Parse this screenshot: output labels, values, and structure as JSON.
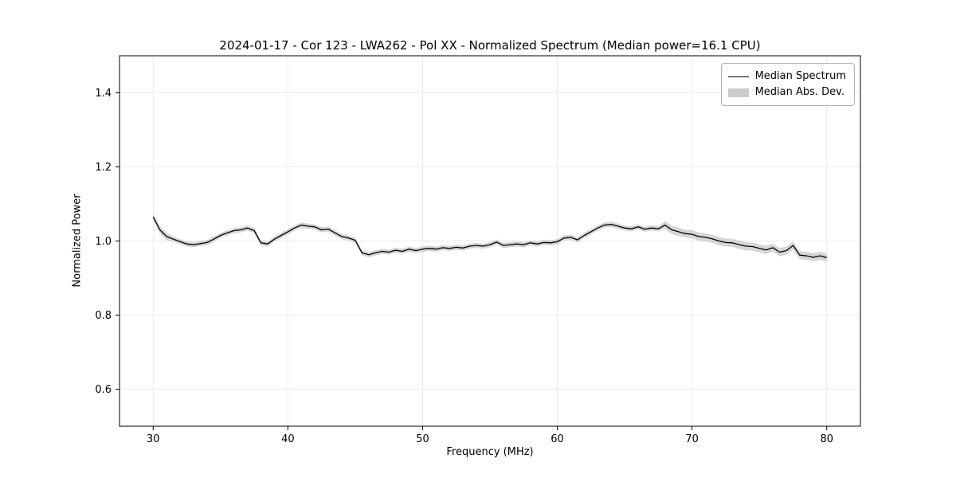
{
  "chart_data": {
    "type": "line",
    "title": "2024-01-17 - Cor 123 - LWA262 - Pol XX - Normalized Spectrum (Median power=16.1 CPU)",
    "xlabel": "Frequency (MHz)",
    "ylabel": "Normalized Power",
    "xlim": [
      27.5,
      82.5
    ],
    "ylim": [
      0.5,
      1.5
    ],
    "xticks": [
      30,
      40,
      50,
      60,
      70,
      80
    ],
    "xtick_labels": [
      "30",
      "40",
      "50",
      "60",
      "70",
      "80"
    ],
    "yticks": [
      0.6,
      0.8,
      1.0,
      1.2,
      1.4
    ],
    "ytick_labels": [
      "0.6",
      "0.8",
      "1.0",
      "1.2",
      "1.4"
    ],
    "grid": true,
    "legend_position": "upper right",
    "line_color": "#000000",
    "band_color": "#cccccc",
    "x": [
      30,
      30.5,
      31,
      31.5,
      32,
      32.5,
      33,
      33.5,
      34,
      34.5,
      35,
      35.5,
      36,
      36.5,
      37,
      37.5,
      38,
      38.5,
      39,
      39.5,
      40,
      40.5,
      41,
      41.5,
      42,
      42.5,
      43,
      43.5,
      44,
      44.5,
      45,
      45.5,
      46,
      46.5,
      47,
      47.5,
      48,
      48.5,
      49,
      49.5,
      50,
      50.5,
      51,
      51.5,
      52,
      52.5,
      53,
      53.5,
      54,
      54.5,
      55,
      55.5,
      56,
      56.5,
      57,
      57.5,
      58,
      58.5,
      59,
      59.5,
      60,
      60.5,
      61,
      61.5,
      62,
      62.5,
      63,
      63.5,
      64,
      64.5,
      65,
      65.5,
      66,
      66.5,
      67,
      67.5,
      68,
      68.5,
      69,
      69.5,
      70,
      70.5,
      71,
      71.5,
      72,
      72.5,
      73,
      73.5,
      74,
      74.5,
      75,
      75.5,
      76,
      76.5,
      77,
      77.5,
      78,
      78.5,
      79,
      79.5,
      80
    ],
    "series": [
      {
        "name": "Median Spectrum",
        "values": [
          1.065,
          1.03,
          1.012,
          1.005,
          0.998,
          0.992,
          0.99,
          0.993,
          0.996,
          1.005,
          1.015,
          1.022,
          1.028,
          1.03,
          1.035,
          1.028,
          0.995,
          0.992,
          1.005,
          1.015,
          1.025,
          1.035,
          1.043,
          1.04,
          1.038,
          1.03,
          1.032,
          1.022,
          1.012,
          1.008,
          1.002,
          0.968,
          0.963,
          0.968,
          0.972,
          0.97,
          0.975,
          0.972,
          0.978,
          0.974,
          0.978,
          0.98,
          0.978,
          0.982,
          0.98,
          0.983,
          0.981,
          0.986,
          0.988,
          0.986,
          0.99,
          0.997,
          0.988,
          0.99,
          0.992,
          0.99,
          0.995,
          0.992,
          0.996,
          0.995,
          0.998,
          1.008,
          1.01,
          1.003,
          1.015,
          1.025,
          1.035,
          1.043,
          1.045,
          1.04,
          1.035,
          1.033,
          1.038,
          1.032,
          1.035,
          1.033,
          1.043,
          1.03,
          1.025,
          1.02,
          1.018,
          1.012,
          1.01,
          1.006,
          1.0,
          0.996,
          0.995,
          0.99,
          0.986,
          0.985,
          0.98,
          0.976,
          0.982,
          0.97,
          0.974,
          0.988,
          0.962,
          0.96,
          0.956,
          0.96,
          0.955
        ]
      },
      {
        "name": "Median Abs. Dev.",
        "mad": [
          0.01,
          0.01,
          0.01,
          0.007,
          0.007,
          0.007,
          0.007,
          0.007,
          0.007,
          0.007,
          0.007,
          0.007,
          0.007,
          0.007,
          0.007,
          0.007,
          0.007,
          0.007,
          0.007,
          0.007,
          0.007,
          0.007,
          0.007,
          0.007,
          0.007,
          0.007,
          0.007,
          0.007,
          0.007,
          0.007,
          0.007,
          0.007,
          0.007,
          0.007,
          0.007,
          0.007,
          0.007,
          0.007,
          0.007,
          0.007,
          0.007,
          0.007,
          0.007,
          0.007,
          0.007,
          0.007,
          0.007,
          0.007,
          0.007,
          0.007,
          0.007,
          0.007,
          0.007,
          0.007,
          0.007,
          0.007,
          0.007,
          0.007,
          0.007,
          0.007,
          0.007,
          0.007,
          0.007,
          0.007,
          0.007,
          0.007,
          0.007,
          0.007,
          0.007,
          0.007,
          0.007,
          0.007,
          0.007,
          0.007,
          0.007,
          0.007,
          0.011,
          0.011,
          0.011,
          0.011,
          0.011,
          0.011,
          0.011,
          0.011,
          0.011,
          0.011,
          0.011,
          0.011,
          0.011,
          0.011,
          0.011,
          0.011,
          0.011,
          0.011,
          0.011,
          0.011,
          0.011,
          0.011,
          0.011,
          0.011,
          0.011
        ]
      }
    ]
  },
  "legend": {
    "items": [
      {
        "label": "Median Spectrum"
      },
      {
        "label": "Median Abs. Dev."
      }
    ]
  }
}
